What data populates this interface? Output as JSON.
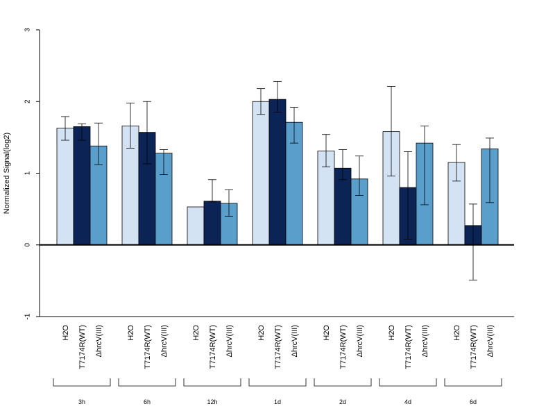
{
  "chart_data": {
    "type": "bar",
    "ylabel": "Normalized Signal(log2)",
    "ylim": [
      -1,
      3
    ],
    "yticks": [
      "-1",
      "0",
      "1",
      "2",
      "3"
    ],
    "grid": false,
    "legend": "none",
    "series_names_as_tick_labels": [
      "H2O",
      "T7174R(WT)",
      "ΔhrcV(III)"
    ],
    "colors": [
      "#d4e3f3",
      "#0c2356",
      "#5a9ecb"
    ],
    "groups": [
      {
        "label": "3h",
        "bars": [
          {
            "value": 1.63,
            "err_low": 1.46,
            "err_high": 1.79
          },
          {
            "value": 1.65,
            "err_low": 1.46,
            "err_high": 1.69
          },
          {
            "value": 1.38,
            "err_low": 1.12,
            "err_high": 1.7
          }
        ]
      },
      {
        "label": "6h",
        "bars": [
          {
            "value": 1.66,
            "err_low": 1.35,
            "err_high": 1.98
          },
          {
            "value": 1.57,
            "err_low": 1.13,
            "err_high": 2.0
          },
          {
            "value": 1.28,
            "err_low": 0.98,
            "err_high": 1.33
          }
        ]
      },
      {
        "label": "12h",
        "bars": [
          {
            "value": 0.53,
            "err_low": null,
            "err_high": null
          },
          {
            "value": 0.61,
            "err_low": 0.6,
            "err_high": 0.91
          },
          {
            "value": 0.58,
            "err_low": 0.4,
            "err_high": 0.77
          }
        ]
      },
      {
        "label": "1d",
        "bars": [
          {
            "value": 2.0,
            "err_low": 1.82,
            "err_high": 2.18
          },
          {
            "value": 2.03,
            "err_low": 1.85,
            "err_high": 2.28
          },
          {
            "value": 1.71,
            "err_low": 1.42,
            "err_high": 1.92
          }
        ]
      },
      {
        "label": "2d",
        "bars": [
          {
            "value": 1.31,
            "err_low": 1.09,
            "err_high": 1.54
          },
          {
            "value": 1.07,
            "err_low": 0.91,
            "err_high": 1.33
          },
          {
            "value": 0.92,
            "err_low": 0.69,
            "err_high": 1.24
          }
        ]
      },
      {
        "label": "4d",
        "bars": [
          {
            "value": 1.58,
            "err_low": 0.96,
            "err_high": 2.21
          },
          {
            "value": 0.8,
            "err_low": 0.08,
            "err_high": 1.3
          },
          {
            "value": 1.42,
            "err_low": 0.56,
            "err_high": 1.66
          }
        ]
      },
      {
        "label": "6d",
        "bars": [
          {
            "value": 1.15,
            "err_low": 0.89,
            "err_high": 1.4
          },
          {
            "value": 0.27,
            "err_low": -0.49,
            "err_high": 0.57
          },
          {
            "value": 1.34,
            "err_low": 0.59,
            "err_high": 1.49
          }
        ]
      }
    ]
  }
}
